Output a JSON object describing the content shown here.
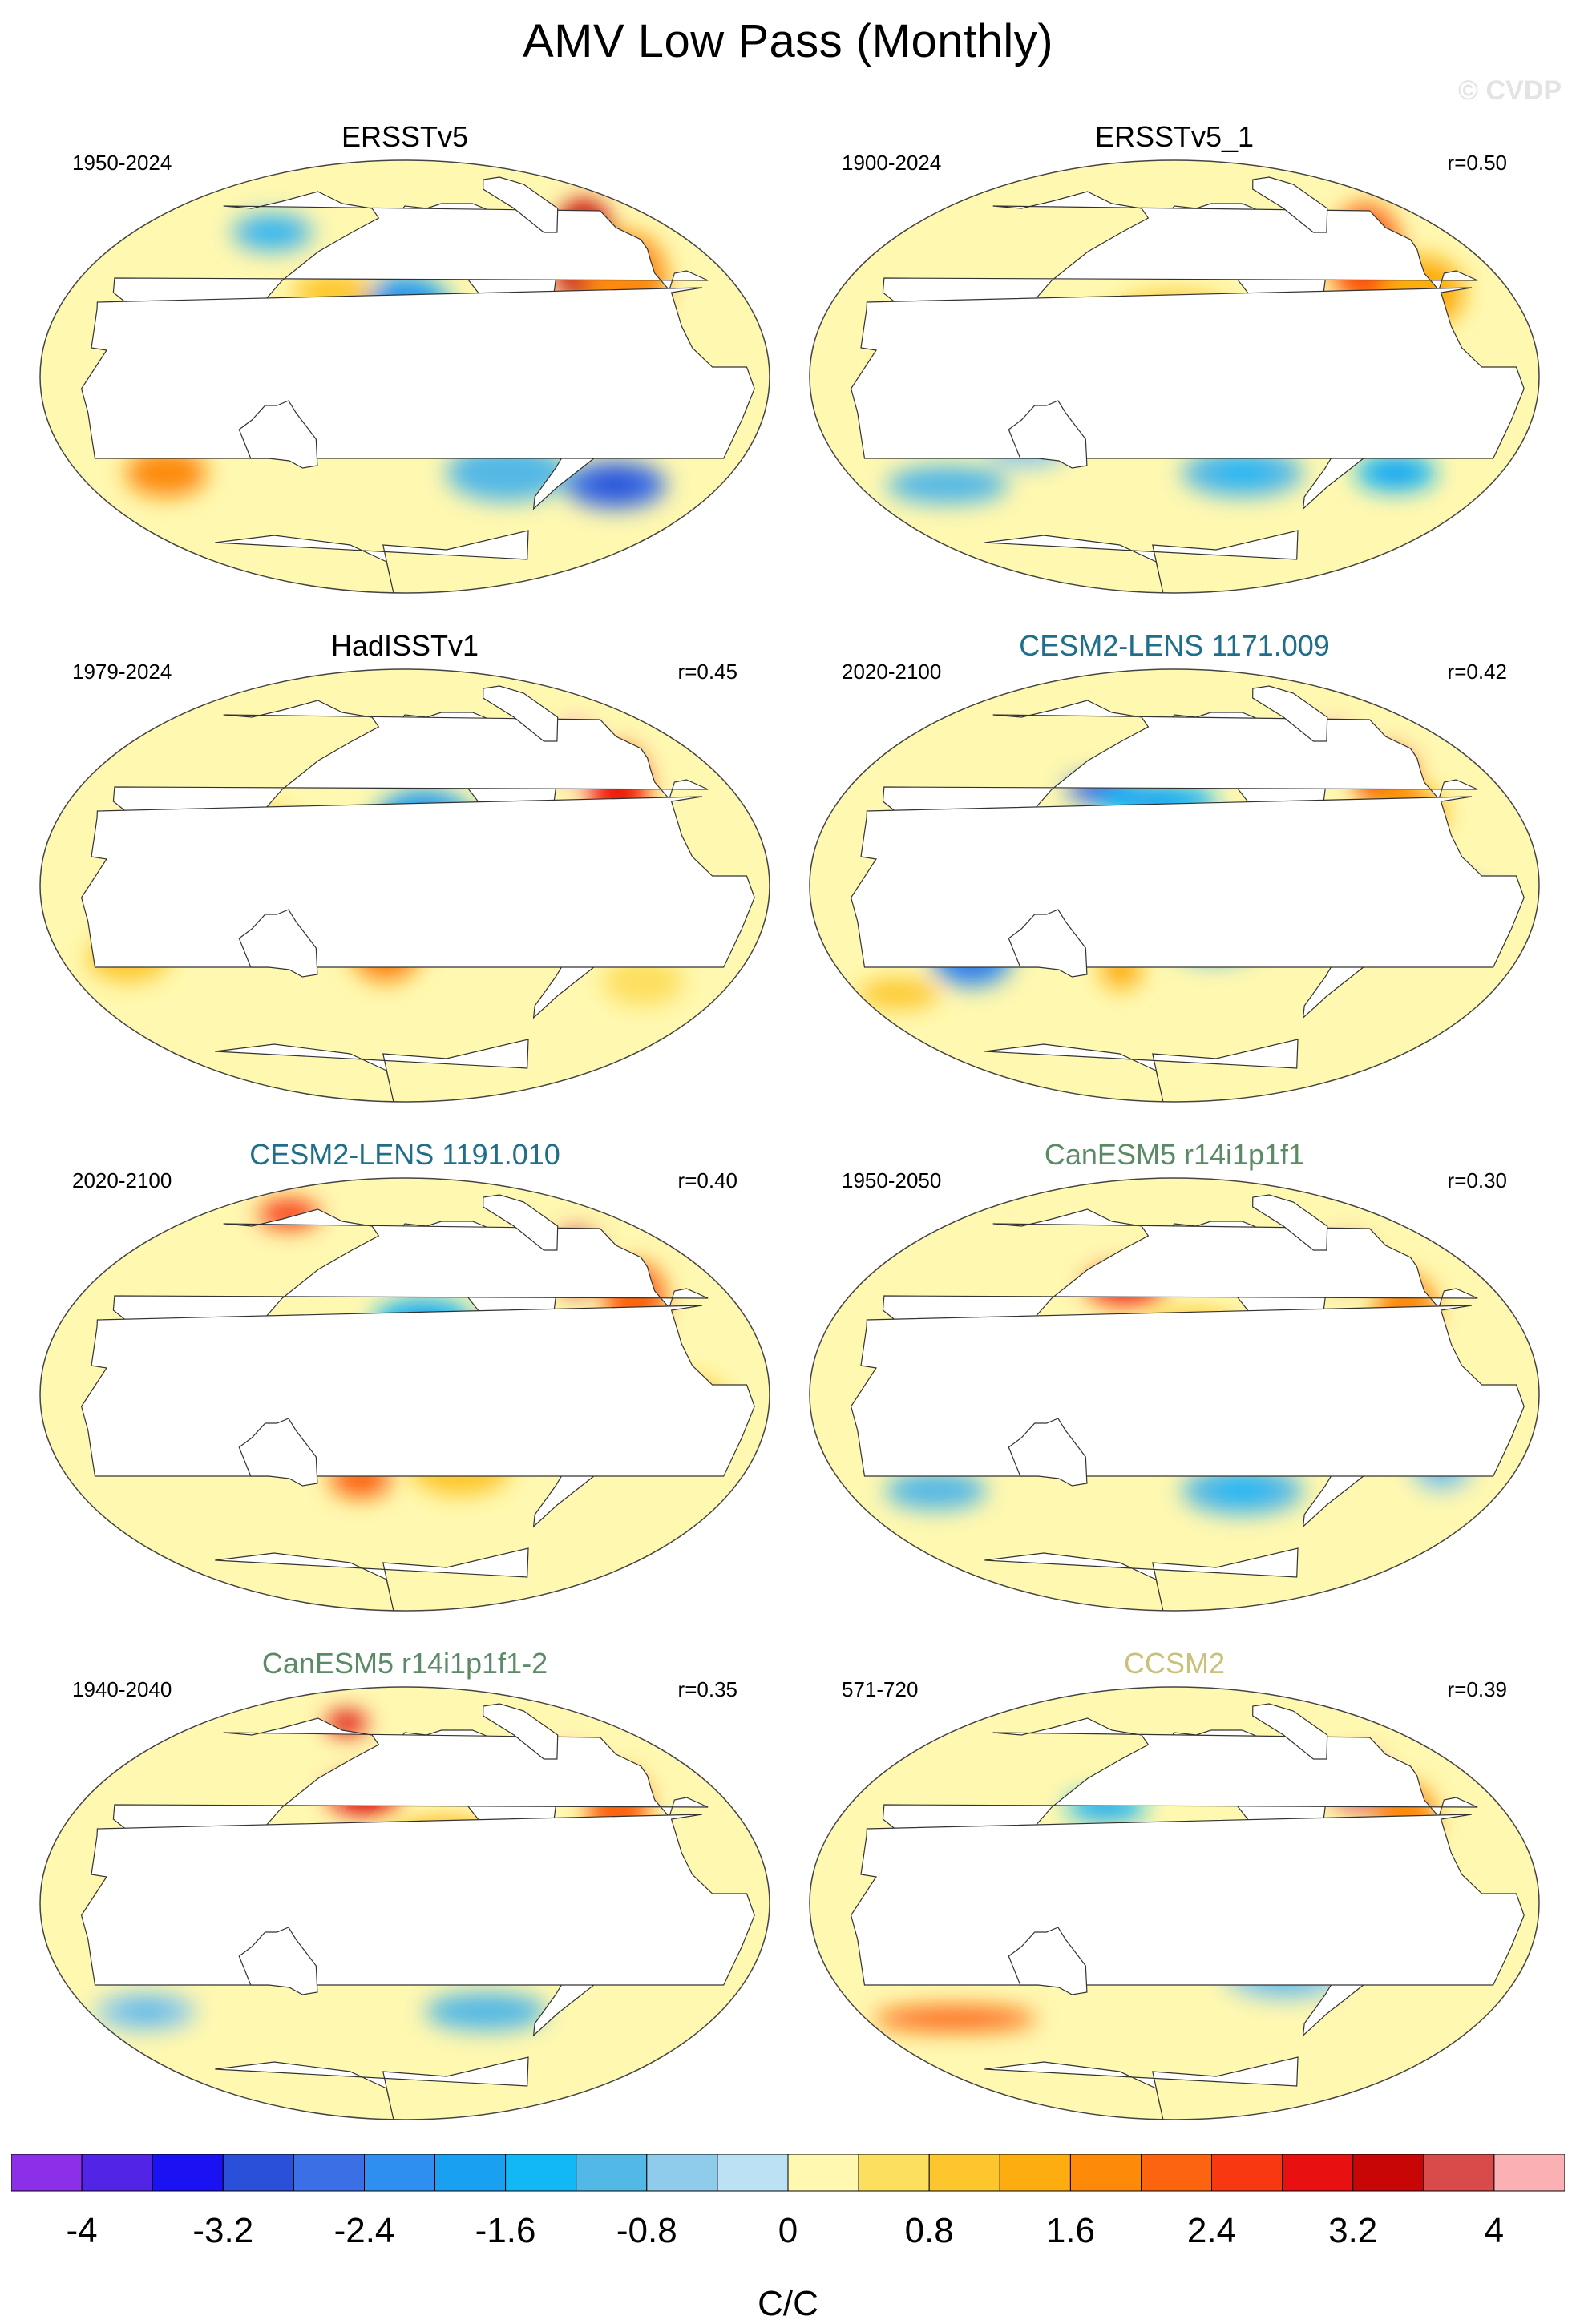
{
  "title": "AMV Low Pass (Monthly)",
  "watermark": "© CVDP",
  "panels": [
    {
      "name": "ERSSTv5",
      "period": "1950-2024",
      "corr": "",
      "title_color": "#000000",
      "features": [
        {
          "lon": -40,
          "lat": 52,
          "value": 3.4,
          "sx": 16,
          "sy": 22
        },
        {
          "lon": -30,
          "lat": 40,
          "value": 1.6,
          "sx": 20,
          "sy": 20
        },
        {
          "lon": -160,
          "lat": 30,
          "value": -1.8,
          "sx": 22,
          "sy": 12
        },
        {
          "lon": 160,
          "lat": 35,
          "value": 1.0,
          "sx": 20,
          "sy": 8
        },
        {
          "lon": -130,
          "lat": 10,
          "value": 1.2,
          "sx": 30,
          "sy": 10
        },
        {
          "lon": -90,
          "lat": -5,
          "value": -0.8,
          "sx": 25,
          "sy": 10
        },
        {
          "lon": 80,
          "lat": -10,
          "value": -1.8,
          "sx": 14,
          "sy": 10
        },
        {
          "lon": 60,
          "lat": -40,
          "value": 1.6,
          "sx": 20,
          "sy": 10
        },
        {
          "lon": -30,
          "lat": -45,
          "value": -2.6,
          "sx": 25,
          "sy": 10
        },
        {
          "lon": -100,
          "lat": -40,
          "value": -1.0,
          "sx": 30,
          "sy": 12
        },
        {
          "lon": 120,
          "lat": 10,
          "value": 1.0,
          "sx": 14,
          "sy": 10
        },
        {
          "lon": 100,
          "lat": 60,
          "value": -1.2,
          "sx": 20,
          "sy": 8
        }
      ]
    },
    {
      "name": "ERSSTv5_1",
      "period": "1900-2024",
      "corr": "r=0.50",
      "title_color": "#000000",
      "features": [
        {
          "lon": -35,
          "lat": 50,
          "value": 2.2,
          "sx": 18,
          "sy": 22
        },
        {
          "lon": -20,
          "lat": 35,
          "value": 1.2,
          "sx": 20,
          "sy": 15
        },
        {
          "lon": -160,
          "lat": 15,
          "value": 0.8,
          "sx": 40,
          "sy": 20
        },
        {
          "lon": 80,
          "lat": 0,
          "value": 0.9,
          "sx": 25,
          "sy": 15
        },
        {
          "lon": -120,
          "lat": -40,
          "value": -1.2,
          "sx": 30,
          "sy": 10
        },
        {
          "lon": 60,
          "lat": -45,
          "value": -1.0,
          "sx": 30,
          "sy": 8
        },
        {
          "lon": -30,
          "lat": -40,
          "value": -1.4,
          "sx": 20,
          "sy": 8
        },
        {
          "lon": 120,
          "lat": -30,
          "value": -0.6,
          "sx": 20,
          "sy": 8
        }
      ]
    },
    {
      "name": "HadISSTv1",
      "period": "1979-2024",
      "corr": "r=0.45",
      "title_color": "#000000",
      "features": [
        {
          "lon": -40,
          "lat": 55,
          "value": 4.0,
          "sx": 12,
          "sy": 14
        },
        {
          "lon": -35,
          "lat": 40,
          "value": 2.6,
          "sx": 15,
          "sy": 18
        },
        {
          "lon": -150,
          "lat": 25,
          "value": -2.0,
          "sx": 25,
          "sy": 15
        },
        {
          "lon": 160,
          "lat": 0,
          "value": 1.2,
          "sx": 20,
          "sy": 12
        },
        {
          "lon": 130,
          "lat": 20,
          "value": 1.0,
          "sx": 15,
          "sy": 12
        },
        {
          "lon": -170,
          "lat": -25,
          "value": 1.8,
          "sx": 18,
          "sy": 15
        },
        {
          "lon": -110,
          "lat": 0,
          "value": -1.0,
          "sx": 20,
          "sy": 10
        },
        {
          "lon": 50,
          "lat": -30,
          "value": 0.8,
          "sx": 20,
          "sy": 10
        },
        {
          "lon": 80,
          "lat": 0,
          "value": -0.8,
          "sx": 20,
          "sy": 10
        },
        {
          "lon": -20,
          "lat": -40,
          "value": 0.6,
          "sx": 20,
          "sy": 10
        }
      ]
    },
    {
      "name": "CESM2-LENS 1171.009",
      "period": "2020-2100",
      "corr": "r=0.42",
      "title_color": "#1f6e8c",
      "features": [
        {
          "lon": -40,
          "lat": 60,
          "value": 4.2,
          "sx": 10,
          "sy": 8
        },
        {
          "lon": -30,
          "lat": 45,
          "value": 2.4,
          "sx": 15,
          "sy": 12
        },
        {
          "lon": -35,
          "lat": 30,
          "value": 1.4,
          "sx": 20,
          "sy": 12
        },
        {
          "lon": 160,
          "lat": 40,
          "value": -2.8,
          "sx": 20,
          "sy": 6
        },
        {
          "lon": -170,
          "lat": 35,
          "value": -1.4,
          "sx": 30,
          "sy": 8
        },
        {
          "lon": 90,
          "lat": -30,
          "value": -2.4,
          "sx": 20,
          "sy": 12
        },
        {
          "lon": -140,
          "lat": -20,
          "value": -1.2,
          "sx": 25,
          "sy": 12
        },
        {
          "lon": -120,
          "lat": 10,
          "value": 0.8,
          "sx": 30,
          "sy": 10
        },
        {
          "lon": 170,
          "lat": -35,
          "value": 1.2,
          "sx": 10,
          "sy": 8
        },
        {
          "lon": -20,
          "lat": -10,
          "value": -0.8,
          "sx": 20,
          "sy": 12
        },
        {
          "lon": 30,
          "lat": -45,
          "value": 1.0,
          "sx": 20,
          "sy": 6
        }
      ]
    },
    {
      "name": "CESM2-LENS 1191.010",
      "period": "2020-2100",
      "corr": "r=0.40",
      "title_color": "#1f6e8c",
      "features": [
        {
          "lon": -40,
          "lat": 55,
          "value": 3.8,
          "sx": 12,
          "sy": 14
        },
        {
          "lon": -25,
          "lat": 40,
          "value": 2.0,
          "sx": 15,
          "sy": 15
        },
        {
          "lon": -150,
          "lat": 30,
          "value": -1.4,
          "sx": 25,
          "sy": 10
        },
        {
          "lon": 175,
          "lat": -35,
          "value": 2.0,
          "sx": 15,
          "sy": 8
        },
        {
          "lon": 100,
          "lat": 0,
          "value": 0.8,
          "sx": 25,
          "sy": 15
        },
        {
          "lon": -130,
          "lat": -30,
          "value": 0.9,
          "sx": 25,
          "sy": 12
        },
        {
          "lon": -20,
          "lat": -5,
          "value": 1.0,
          "sx": 20,
          "sy": 12
        },
        {
          "lon": 80,
          "lat": 75,
          "value": 2.4,
          "sx": 15,
          "sy": 6
        }
      ]
    },
    {
      "name": "CanESM5 r14i1p1f1",
      "period": "1950-2050",
      "corr": "r=0.30",
      "title_color": "#5b8a66",
      "features": [
        {
          "lon": 170,
          "lat": 45,
          "value": 2.6,
          "sx": 20,
          "sy": 8
        },
        {
          "lon": -40,
          "lat": 55,
          "value": 3.6,
          "sx": 12,
          "sy": 10
        },
        {
          "lon": -30,
          "lat": 35,
          "value": 1.6,
          "sx": 15,
          "sy": 15
        },
        {
          "lon": -150,
          "lat": 20,
          "value": 1.0,
          "sx": 30,
          "sy": 15
        },
        {
          "lon": -120,
          "lat": -40,
          "value": -1.2,
          "sx": 30,
          "sy": 10
        },
        {
          "lon": 60,
          "lat": -40,
          "value": -1.0,
          "sx": 25,
          "sy": 8
        },
        {
          "lon": 90,
          "lat": 0,
          "value": 0.9,
          "sx": 20,
          "sy": 15
        },
        {
          "lon": -15,
          "lat": -30,
          "value": -0.8,
          "sx": 15,
          "sy": 10
        }
      ]
    },
    {
      "name": "CanESM5 r14i1p1f1-2",
      "period": "1940-2040",
      "corr": "r=0.35",
      "title_color": "#5b8a66",
      "features": [
        {
          "lon": 175,
          "lat": 45,
          "value": 2.8,
          "sx": 18,
          "sy": 8
        },
        {
          "lon": -40,
          "lat": 58,
          "value": 4.0,
          "sx": 10,
          "sy": 8
        },
        {
          "lon": -35,
          "lat": 40,
          "value": 2.0,
          "sx": 15,
          "sy": 15
        },
        {
          "lon": -140,
          "lat": 15,
          "value": 1.2,
          "sx": 35,
          "sy": 20
        },
        {
          "lon": 80,
          "lat": 0,
          "value": 1.0,
          "sx": 25,
          "sy": 15
        },
        {
          "lon": -110,
          "lat": -45,
          "value": -1.0,
          "sx": 30,
          "sy": 8
        },
        {
          "lon": 40,
          "lat": -45,
          "value": -0.8,
          "sx": 25,
          "sy": 8
        },
        {
          "lon": 140,
          "lat": 75,
          "value": 3.0,
          "sx": 10,
          "sy": 5
        }
      ]
    },
    {
      "name": "CCSM2",
      "period": "571-720",
      "corr": "r=0.39",
      "title_color": "#c9c07a",
      "features": [
        {
          "lon": -40,
          "lat": 50,
          "value": 3.6,
          "sx": 14,
          "sy": 12
        },
        {
          "lon": -30,
          "lat": 35,
          "value": 1.6,
          "sx": 15,
          "sy": 15
        },
        {
          "lon": 160,
          "lat": 40,
          "value": -1.6,
          "sx": 20,
          "sy": 6
        },
        {
          "lon": -160,
          "lat": 10,
          "value": 1.2,
          "sx": 40,
          "sy": 6
        },
        {
          "lon": 160,
          "lat": -5,
          "value": -1.0,
          "sx": 20,
          "sy": 8
        },
        {
          "lon": 60,
          "lat": -48,
          "value": 2.0,
          "sx": 40,
          "sy": 5
        },
        {
          "lon": -100,
          "lat": -30,
          "value": -0.8,
          "sx": 30,
          "sy": 10
        },
        {
          "lon": 80,
          "lat": -10,
          "value": -0.8,
          "sx": 20,
          "sy": 10
        }
      ]
    }
  ],
  "colorbar": {
    "label": "C/C",
    "ticks": [
      "-4",
      "-3.2",
      "-2.4",
      "-1.6",
      "-0.8",
      "0",
      "0.8",
      "1.6",
      "2.4",
      "3.2",
      "4"
    ],
    "levels": [
      -4.4,
      -4,
      -3.6,
      -3.2,
      -2.8,
      -2.4,
      -2,
      -1.6,
      -1.2,
      -0.8,
      -0.4,
      0,
      0.4,
      0.8,
      1.2,
      1.6,
      2,
      2.4,
      2.8,
      3.2,
      3.6,
      4,
      4.4
    ],
    "colors": [
      "#8c2fe8",
      "#5224e6",
      "#1a12f2",
      "#2a4fd9",
      "#3a6fe6",
      "#2e8ff0",
      "#1aa0f0",
      "#12b8f5",
      "#52b8e6",
      "#8fcbea",
      "#bde1f4",
      "#fff8b0",
      "#fddf5f",
      "#fdc62c",
      "#fdad10",
      "#fd8a08",
      "#fc6410",
      "#f83810",
      "#e81010",
      "#c80606",
      "#d94a4a",
      "#fbb0b4"
    ]
  }
}
